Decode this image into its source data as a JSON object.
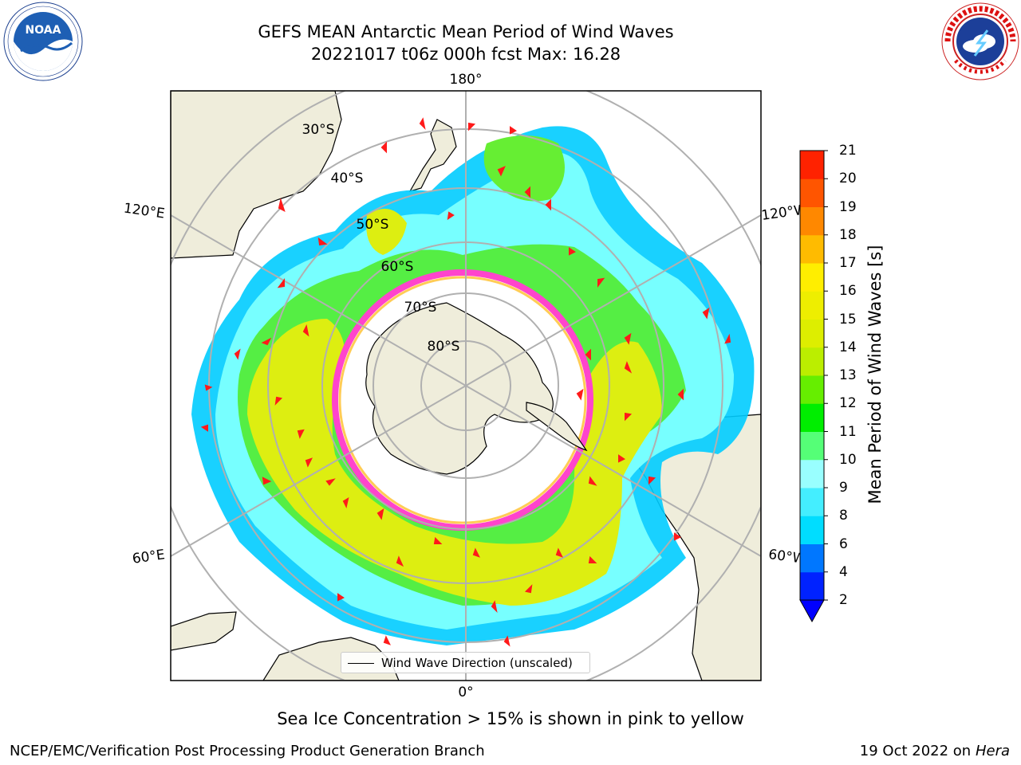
{
  "header": {
    "title_line1": "GEFS MEAN Antarctic Mean Period of Wind Waves",
    "title_line2": "20221017 t06z 000h fcst   Max: 16.28"
  },
  "logos": {
    "noaa": {
      "text": "NOAA",
      "ring_text": "NATIONAL OCEANIC AND ATMOSPHERIC ADMINISTRATION · U.S. DEPARTMENT OF COMMERCE"
    },
    "nws": {
      "ring_text": "NATIONAL WEATHER SERVICE"
    }
  },
  "map": {
    "projection": "south polar stereographic",
    "lon_labels": {
      "top": "180°",
      "bottom": "0°",
      "left_upper": "120°E",
      "left_lower": "60°E",
      "right_upper": "120°W",
      "right_lower": "60°W"
    },
    "lat_labels": [
      "30°S",
      "40°S",
      "50°S",
      "60°S",
      "70°S",
      "80°S"
    ],
    "colors": {
      "land": "#efeddb",
      "ocean": "#ffffff",
      "grid": "#b0b0b0",
      "arrows": "#ff1a1a",
      "sea_ice": "#ff44cc"
    },
    "legend_label": "Wind Wave Direction (unscaled)"
  },
  "colorbar": {
    "label": "Mean Period of Wind Waves [s]",
    "ticks": [
      "2",
      "4",
      "6",
      "8",
      "9",
      "10",
      "11",
      "12",
      "13",
      "14",
      "15",
      "16",
      "17",
      "18",
      "19",
      "20",
      "21"
    ],
    "colors": [
      "#0022ff",
      "#0077ff",
      "#00ddff",
      "#44eeff",
      "#99ffff",
      "#55ff77",
      "#00ee00",
      "#66ee00",
      "#bbee00",
      "#ddee00",
      "#eeee00",
      "#ffee00",
      "#ffbb00",
      "#ff8800",
      "#ff5500",
      "#ff2200"
    ],
    "extend_min_color": "#0000ff"
  },
  "caption": "Sea Ice Concentration > 15% is shown in pink to yellow",
  "footer": {
    "left": "NCEP/EMC/Verification Post Processing Product Generation Branch",
    "right_prefix": "19 Oct 2022 on ",
    "right_machine": "Hera"
  }
}
